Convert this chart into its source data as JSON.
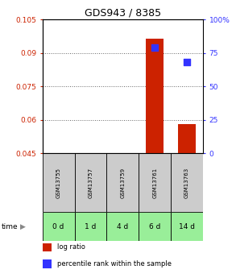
{
  "title": "GDS943 / 8385",
  "samples": [
    "GSM13755",
    "GSM13757",
    "GSM13759",
    "GSM13761",
    "GSM13763"
  ],
  "time_labels": [
    "0 d",
    "1 d",
    "4 d",
    "6 d",
    "14 d"
  ],
  "log_ratio_values": [
    null,
    null,
    null,
    0.0965,
    0.058
  ],
  "percentile_values": [
    null,
    null,
    null,
    79,
    68
  ],
  "ylim_left": [
    0.045,
    0.105
  ],
  "ylim_right": [
    0,
    100
  ],
  "yticks_left": [
    0.045,
    0.06,
    0.075,
    0.09,
    0.105
  ],
  "ytick_labels_left": [
    "0.045",
    "0.06",
    "0.075",
    "0.09",
    "0.105"
  ],
  "yticks_right": [
    0,
    25,
    50,
    75,
    100
  ],
  "ytick_labels_right": [
    "0",
    "25",
    "50",
    "75",
    "100%"
  ],
  "bar_color": "#cc2200",
  "point_color": "#3333ff",
  "sample_bg_color": "#cccccc",
  "time_bg_color": "#99ee99",
  "grid_color": "#666666",
  "baseline": 0.045,
  "bar_width": 0.55,
  "legend_items": [
    {
      "color": "#cc2200",
      "label": "log ratio"
    },
    {
      "color": "#3333ff",
      "label": "percentile rank within the sample"
    }
  ],
  "figsize": [
    2.93,
    3.45
  ],
  "dpi": 100
}
